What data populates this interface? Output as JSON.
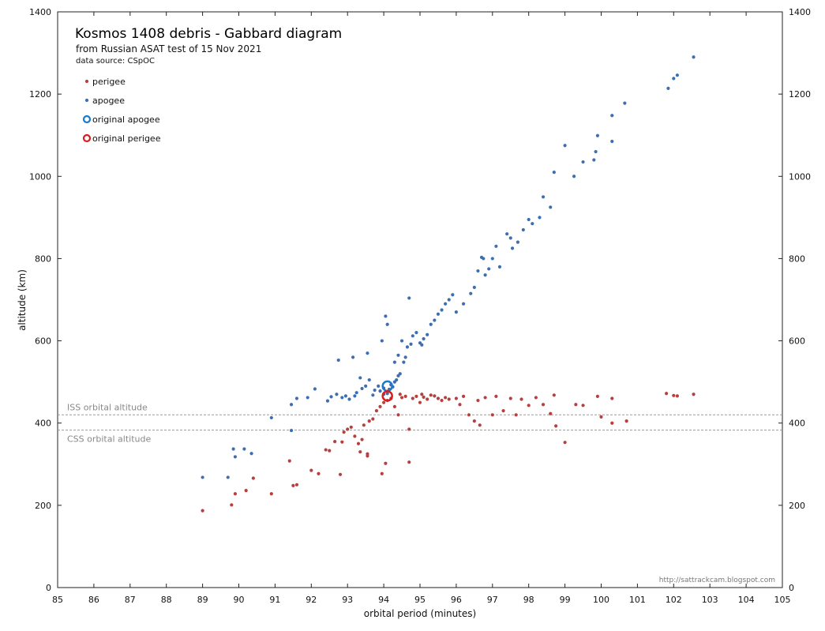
{
  "chart_data": {
    "type": "scatter",
    "title": "Kosmos 1408 debris  - Gabbard diagram",
    "subtitle": "from Russian ASAT test of 15 Nov 2021",
    "source_note": "data source:  CSpOC",
    "xlabel": "orbital period (minutes)",
    "ylabel": "altitude (km)",
    "xlim": [
      85,
      105
    ],
    "ylim": [
      0,
      1400
    ],
    "x_ticks": [
      "85",
      "86",
      "87",
      "88",
      "89",
      "90",
      "91",
      "92",
      "93",
      "94",
      "95",
      "96",
      "97",
      "98",
      "99",
      "100",
      "101",
      "102",
      "103",
      "104",
      "105"
    ],
    "y_ticks": [
      "0",
      "200",
      "400",
      "600",
      "800",
      "1000",
      "1200",
      "1400"
    ],
    "credit": "http://sattrackcam.blogspot.com",
    "colors": {
      "perigee": "#b5403f",
      "apogee": "#3d6fb0",
      "orig_apogee": "#1a7acb",
      "orig_perigee": "#d81e1e",
      "ref": "#9a9a9a"
    },
    "reference_lines": [
      {
        "label": "ISS orbital altitude",
        "altitude_km": 420
      },
      {
        "label": "CSS orbital altitude",
        "altitude_km": 383
      }
    ],
    "legend": [
      {
        "label": "perigee",
        "marker": "dot",
        "color": "#b5403f"
      },
      {
        "label": "apogee",
        "marker": "dot",
        "color": "#3d6fb0"
      },
      {
        "label": "original apogee",
        "marker": "ring",
        "color": "#1a7acb"
      },
      {
        "label": "original perigee",
        "marker": "ring",
        "color": "#d81e1e"
      }
    ],
    "original": {
      "period": 94.1,
      "apogee": 490,
      "perigee": 466
    },
    "series": [
      {
        "name": "apogee",
        "points": [
          [
            89.0,
            268
          ],
          [
            89.7,
            268
          ],
          [
            89.85,
            337
          ],
          [
            89.9,
            318
          ],
          [
            90.15,
            337
          ],
          [
            90.35,
            326
          ],
          [
            90.9,
            413
          ],
          [
            91.45,
            445
          ],
          [
            91.45,
            382
          ],
          [
            91.6,
            460
          ],
          [
            91.9,
            462
          ],
          [
            92.1,
            483
          ],
          [
            92.45,
            454
          ],
          [
            92.55,
            464
          ],
          [
            92.7,
            470
          ],
          [
            92.75,
            553
          ],
          [
            92.85,
            462
          ],
          [
            92.95,
            466
          ],
          [
            93.05,
            458
          ],
          [
            93.15,
            560
          ],
          [
            93.2,
            466
          ],
          [
            93.25,
            474
          ],
          [
            93.35,
            510
          ],
          [
            93.4,
            484
          ],
          [
            93.5,
            490
          ],
          [
            93.55,
            570
          ],
          [
            93.6,
            505
          ],
          [
            93.7,
            468
          ],
          [
            93.75,
            480
          ],
          [
            93.85,
            490
          ],
          [
            93.9,
            478
          ],
          [
            93.95,
            600
          ],
          [
            94.0,
            470
          ],
          [
            94.0,
            485
          ],
          [
            94.05,
            660
          ],
          [
            94.1,
            640
          ],
          [
            94.1,
            472
          ],
          [
            94.15,
            482
          ],
          [
            94.2,
            493
          ],
          [
            94.25,
            488
          ],
          [
            94.3,
            500
          ],
          [
            94.35,
            505
          ],
          [
            94.4,
            515
          ],
          [
            94.45,
            520
          ],
          [
            94.5,
            600
          ],
          [
            94.3,
            548
          ],
          [
            94.4,
            565
          ],
          [
            94.55,
            548
          ],
          [
            94.6,
            560
          ],
          [
            94.65,
            585
          ],
          [
            94.7,
            704
          ],
          [
            94.75,
            592
          ],
          [
            94.8,
            612
          ],
          [
            94.9,
            620
          ],
          [
            95.0,
            595
          ],
          [
            95.05,
            590
          ],
          [
            95.1,
            605
          ],
          [
            95.2,
            615
          ],
          [
            95.3,
            640
          ],
          [
            95.4,
            650
          ],
          [
            95.5,
            665
          ],
          [
            95.6,
            675
          ],
          [
            95.7,
            690
          ],
          [
            95.8,
            700
          ],
          [
            95.9,
            712
          ],
          [
            96.0,
            670
          ],
          [
            96.2,
            690
          ],
          [
            96.4,
            715
          ],
          [
            96.5,
            730
          ],
          [
            96.6,
            770
          ],
          [
            96.7,
            803
          ],
          [
            96.75,
            800
          ],
          [
            96.8,
            760
          ],
          [
            96.9,
            775
          ],
          [
            97.0,
            800
          ],
          [
            97.1,
            830
          ],
          [
            97.2,
            780
          ],
          [
            97.4,
            860
          ],
          [
            97.5,
            850
          ],
          [
            97.55,
            825
          ],
          [
            97.7,
            840
          ],
          [
            97.85,
            870
          ],
          [
            98.0,
            895
          ],
          [
            98.1,
            885
          ],
          [
            98.3,
            900
          ],
          [
            98.4,
            950
          ],
          [
            98.6,
            925
          ],
          [
            98.7,
            1010
          ],
          [
            99.0,
            1075
          ],
          [
            99.25,
            1000
          ],
          [
            99.5,
            1035
          ],
          [
            99.8,
            1040
          ],
          [
            99.85,
            1060
          ],
          [
            99.9,
            1099
          ],
          [
            100.3,
            1085
          ],
          [
            100.3,
            1148
          ],
          [
            100.65,
            1178
          ],
          [
            101.85,
            1214
          ],
          [
            102.0,
            1238
          ],
          [
            102.1,
            1246
          ],
          [
            102.55,
            1290
          ]
        ]
      },
      {
        "name": "perigee",
        "points": [
          [
            89.0,
            187
          ],
          [
            89.8,
            201
          ],
          [
            89.9,
            228
          ],
          [
            90.2,
            236
          ],
          [
            90.4,
            266
          ],
          [
            90.9,
            228
          ],
          [
            91.4,
            308
          ],
          [
            91.5,
            248
          ],
          [
            91.6,
            250
          ],
          [
            92.0,
            285
          ],
          [
            92.2,
            277
          ],
          [
            92.4,
            335
          ],
          [
            92.5,
            333
          ],
          [
            92.65,
            355
          ],
          [
            92.8,
            275
          ],
          [
            92.85,
            354
          ],
          [
            92.9,
            378
          ],
          [
            93.0,
            385
          ],
          [
            93.1,
            390
          ],
          [
            93.2,
            368
          ],
          [
            93.3,
            350
          ],
          [
            93.35,
            330
          ],
          [
            93.4,
            360
          ],
          [
            93.45,
            395
          ],
          [
            93.55,
            320
          ],
          [
            93.55,
            325
          ],
          [
            93.6,
            405
          ],
          [
            93.7,
            410
          ],
          [
            93.8,
            430
          ],
          [
            93.9,
            440
          ],
          [
            93.95,
            277
          ],
          [
            94.0,
            450
          ],
          [
            94.05,
            302
          ],
          [
            94.1,
            455
          ],
          [
            94.2,
            460
          ],
          [
            94.3,
            440
          ],
          [
            94.4,
            420
          ],
          [
            94.45,
            470
          ],
          [
            94.5,
            462
          ],
          [
            94.6,
            465
          ],
          [
            94.7,
            385
          ],
          [
            94.7,
            305
          ],
          [
            94.8,
            460
          ],
          [
            94.9,
            465
          ],
          [
            95.0,
            450
          ],
          [
            95.05,
            470
          ],
          [
            95.1,
            463
          ],
          [
            95.2,
            458
          ],
          [
            95.3,
            468
          ],
          [
            95.4,
            466
          ],
          [
            95.5,
            460
          ],
          [
            95.6,
            455
          ],
          [
            95.7,
            462
          ],
          [
            95.8,
            458
          ],
          [
            96.0,
            460
          ],
          [
            96.1,
            445
          ],
          [
            96.2,
            465
          ],
          [
            96.35,
            420
          ],
          [
            96.5,
            405
          ],
          [
            96.6,
            455
          ],
          [
            96.65,
            395
          ],
          [
            96.8,
            462
          ],
          [
            97.0,
            420
          ],
          [
            97.1,
            465
          ],
          [
            97.3,
            430
          ],
          [
            97.5,
            460
          ],
          [
            97.65,
            420
          ],
          [
            97.8,
            458
          ],
          [
            98.0,
            443
          ],
          [
            98.2,
            462
          ],
          [
            98.4,
            445
          ],
          [
            98.6,
            423
          ],
          [
            98.7,
            468
          ],
          [
            98.75,
            393
          ],
          [
            99.0,
            353
          ],
          [
            99.3,
            445
          ],
          [
            99.5,
            443
          ],
          [
            99.9,
            465
          ],
          [
            100.0,
            415
          ],
          [
            100.3,
            460
          ],
          [
            100.3,
            400
          ],
          [
            100.7,
            405
          ],
          [
            101.8,
            472
          ],
          [
            102.0,
            467
          ],
          [
            102.1,
            466
          ],
          [
            102.55,
            470
          ]
        ]
      }
    ]
  }
}
